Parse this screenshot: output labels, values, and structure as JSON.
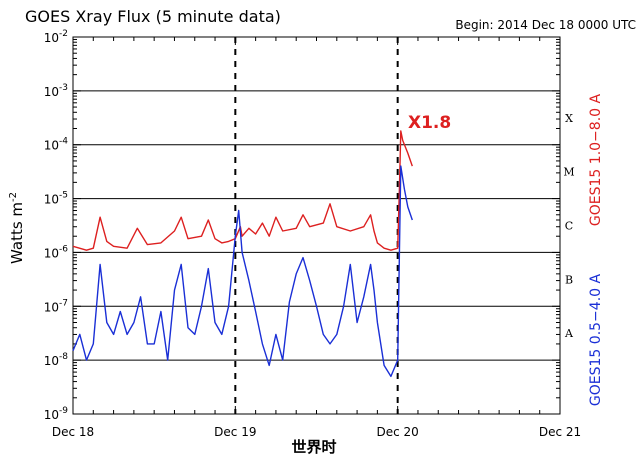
{
  "chart_data": {
    "type": "line",
    "title": "GOES Xray Flux (5 minute data)",
    "begin_label": "Begin:  2014 Dec 18 0000 UTC",
    "xlabel": "世界时",
    "ylabel_base": "Watts m",
    "ylabel_exp": "-2",
    "x_ticks": [
      "Dec 18",
      "Dec 19",
      "Dec 20",
      "Dec 21"
    ],
    "y_scale": "log",
    "ylim": [
      1e-09,
      0.01
    ],
    "y_ticks": [
      {
        "base": "10",
        "exp": "-2"
      },
      {
        "base": "10",
        "exp": "-3"
      },
      {
        "base": "10",
        "exp": "-4"
      },
      {
        "base": "10",
        "exp": "-5"
      },
      {
        "base": "10",
        "exp": "-6"
      },
      {
        "base": "10",
        "exp": "-7"
      },
      {
        "base": "10",
        "exp": "-8"
      },
      {
        "base": "10",
        "exp": "-9"
      }
    ],
    "flare_classes": [
      "X",
      "M",
      "C",
      "B",
      "A"
    ],
    "annotation": "X1.8",
    "series": [
      {
        "name": "GOES15 1.0−8.0 A",
        "color": "#dd2020",
        "points": [
          [
            "Dec 18 00:00",
            1.3e-06
          ],
          [
            "Dec 18 02:00",
            1.1e-06
          ],
          [
            "Dec 18 03:00",
            1.2e-06
          ],
          [
            "Dec 18 04:00",
            4.5e-06
          ],
          [
            "Dec 18 05:00",
            1.6e-06
          ],
          [
            "Dec 18 06:00",
            1.3e-06
          ],
          [
            "Dec 18 08:00",
            1.2e-06
          ],
          [
            "Dec 18 09:30",
            2.8e-06
          ],
          [
            "Dec 18 11:00",
            1.4e-06
          ],
          [
            "Dec 18 13:00",
            1.5e-06
          ],
          [
            "Dec 18 15:00",
            2.5e-06
          ],
          [
            "Dec 18 16:00",
            4.5e-06
          ],
          [
            "Dec 18 17:00",
            1.8e-06
          ],
          [
            "Dec 18 19:00",
            2e-06
          ],
          [
            "Dec 18 20:00",
            4e-06
          ],
          [
            "Dec 18 21:00",
            1.8e-06
          ],
          [
            "Dec 18 22:00",
            1.5e-06
          ],
          [
            "Dec 18 23:00",
            1.6e-06
          ],
          [
            "Dec 19 00:00",
            1.8e-06
          ],
          [
            "Dec 19 00:45",
            3e-06
          ],
          [
            "Dec 19 01:00",
            2e-06
          ],
          [
            "Dec 19 02:00",
            2.8e-06
          ],
          [
            "Dec 19 03:00",
            2.2e-06
          ],
          [
            "Dec 19 04:00",
            3.5e-06
          ],
          [
            "Dec 19 05:00",
            2e-06
          ],
          [
            "Dec 19 06:00",
            4.5e-06
          ],
          [
            "Dec 19 07:00",
            2.5e-06
          ],
          [
            "Dec 19 09:00",
            2.8e-06
          ],
          [
            "Dec 19 10:00",
            5e-06
          ],
          [
            "Dec 19 11:00",
            3e-06
          ],
          [
            "Dec 19 13:00",
            3.5e-06
          ],
          [
            "Dec 19 14:00",
            8e-06
          ],
          [
            "Dec 19 15:00",
            3e-06
          ],
          [
            "Dec 19 17:00",
            2.5e-06
          ],
          [
            "Dec 19 19:00",
            3e-06
          ],
          [
            "Dec 19 20:00",
            5e-06
          ],
          [
            "Dec 19 20:30",
            2.5e-06
          ],
          [
            "Dec 19 21:00",
            1.5e-06
          ],
          [
            "Dec 19 22:00",
            1.2e-06
          ],
          [
            "Dec 19 23:00",
            1.1e-06
          ],
          [
            "Dec 20 00:00",
            1.2e-06
          ],
          [
            "Dec 20 00:15",
            1.5e-05
          ],
          [
            "Dec 20 00:28",
            0.00018
          ],
          [
            "Dec 20 00:45",
            0.00012
          ],
          [
            "Dec 20 01:30",
            7e-05
          ],
          [
            "Dec 20 02:10",
            4e-05
          ]
        ]
      },
      {
        "name": "GOES15 0.5−4.0 A",
        "color": "#1a2fd6",
        "points": [
          [
            "Dec 18 00:00",
            1.5e-08
          ],
          [
            "Dec 18 01:00",
            3e-08
          ],
          [
            "Dec 18 02:00",
            1e-08
          ],
          [
            "Dec 18 03:00",
            2e-08
          ],
          [
            "Dec 18 04:00",
            6e-07
          ],
          [
            "Dec 18 05:00",
            5e-08
          ],
          [
            "Dec 18 06:00",
            3e-08
          ],
          [
            "Dec 18 07:00",
            8e-08
          ],
          [
            "Dec 18 08:00",
            3e-08
          ],
          [
            "Dec 18 09:00",
            5e-08
          ],
          [
            "Dec 18 10:00",
            1.5e-07
          ],
          [
            "Dec 18 11:00",
            2e-08
          ],
          [
            "Dec 18 12:00",
            2e-08
          ],
          [
            "Dec 18 13:00",
            8e-08
          ],
          [
            "Dec 18 14:00",
            1e-08
          ],
          [
            "Dec 18 15:00",
            2e-07
          ],
          [
            "Dec 18 16:00",
            6e-07
          ],
          [
            "Dec 18 17:00",
            4e-08
          ],
          [
            "Dec 18 18:00",
            3e-08
          ],
          [
            "Dec 18 19:00",
            1e-07
          ],
          [
            "Dec 18 20:00",
            5e-07
          ],
          [
            "Dec 18 21:00",
            5e-08
          ],
          [
            "Dec 18 22:00",
            3e-08
          ],
          [
            "Dec 18 23:00",
            1e-07
          ],
          [
            "Dec 19 00:00",
            2e-06
          ],
          [
            "Dec 19 00:30",
            6e-06
          ],
          [
            "Dec 19 01:00",
            1e-06
          ],
          [
            "Dec 19 02:00",
            3e-07
          ],
          [
            "Dec 19 03:00",
            8e-08
          ],
          [
            "Dec 19 04:00",
            2e-08
          ],
          [
            "Dec 19 05:00",
            8e-09
          ],
          [
            "Dec 19 06:00",
            3e-08
          ],
          [
            "Dec 19 07:00",
            1e-08
          ],
          [
            "Dec 19 08:00",
            1.2e-07
          ],
          [
            "Dec 19 09:00",
            4e-07
          ],
          [
            "Dec 19 10:00",
            8e-07
          ],
          [
            "Dec 19 11:00",
            3e-07
          ],
          [
            "Dec 19 12:00",
            1e-07
          ],
          [
            "Dec 19 13:00",
            3e-08
          ],
          [
            "Dec 19 14:00",
            2e-08
          ],
          [
            "Dec 19 15:00",
            3e-08
          ],
          [
            "Dec 19 16:00",
            1e-07
          ],
          [
            "Dec 19 17:00",
            6e-07
          ],
          [
            "Dec 19 18:00",
            5e-08
          ],
          [
            "Dec 19 19:00",
            1.5e-07
          ],
          [
            "Dec 19 20:00",
            6e-07
          ],
          [
            "Dec 19 20:30",
            2e-07
          ],
          [
            "Dec 19 21:00",
            5e-08
          ],
          [
            "Dec 19 22:00",
            8e-09
          ],
          [
            "Dec 19 23:00",
            5e-09
          ],
          [
            "Dec 20 00:00",
            1e-08
          ],
          [
            "Dec 20 00:28",
            4e-05
          ],
          [
            "Dec 20 01:00",
            1.5e-05
          ],
          [
            "Dec 20 01:30",
            7e-06
          ],
          [
            "Dec 20 02:10",
            4e-06
          ]
        ]
      }
    ]
  }
}
